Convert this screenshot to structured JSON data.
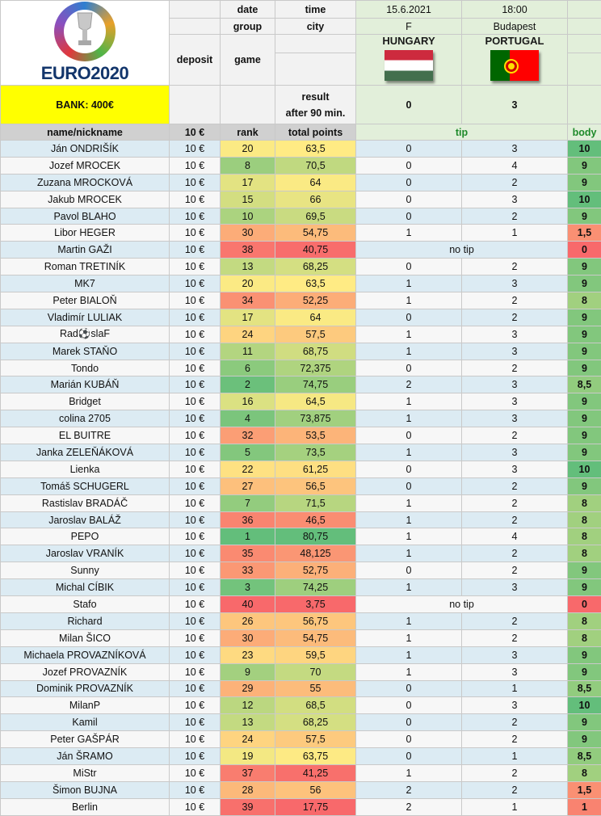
{
  "header": {
    "logo_text": "EURO2020",
    "bank_label": "BANK: 400€",
    "date_label": "date",
    "time_label": "time",
    "group_label": "group",
    "city_label": "city",
    "deposit_label": "deposit",
    "game_label": "game",
    "result_label_1": "result",
    "result_label_2": "after 90 min.",
    "date_value": "15.6.2021",
    "time_value": "18:00",
    "group_value": "F",
    "city_value": "Budapest",
    "home_team": "HUNGARY",
    "away_team": "PORTUGAL",
    "home_score": "0",
    "away_score": "3"
  },
  "columns": {
    "name": "name/nickname",
    "deposit": "10 €",
    "rank": "rank",
    "total": "total points",
    "tip": "tip",
    "points": "body"
  },
  "colors": {
    "no_tip_text": "no tip",
    "green": "#63be7b",
    "yellow": "#ffeb84",
    "red": "#f8696b"
  },
  "rows": [
    {
      "name": "Ján ONDRIŠÍK",
      "deposit": "10 €",
      "rank": "20",
      "total": "63,5",
      "tip1": "0",
      "tip2": "3",
      "points": "10"
    },
    {
      "name": "Jozef MROCEK",
      "deposit": "10 €",
      "rank": "8",
      "total": "70,5",
      "tip1": "0",
      "tip2": "4",
      "points": "9"
    },
    {
      "name": "Zuzana MROCKOVÁ",
      "deposit": "10 €",
      "rank": "17",
      "total": "64",
      "tip1": "0",
      "tip2": "2",
      "points": "9"
    },
    {
      "name": "Jakub MROCEK",
      "deposit": "10 €",
      "rank": "15",
      "total": "66",
      "tip1": "0",
      "tip2": "3",
      "points": "10"
    },
    {
      "name": "Pavol BLAHO",
      "deposit": "10 €",
      "rank": "10",
      "total": "69,5",
      "tip1": "0",
      "tip2": "2",
      "points": "9"
    },
    {
      "name": "Libor HEGER",
      "deposit": "10 €",
      "rank": "30",
      "total": "54,75",
      "tip1": "1",
      "tip2": "1",
      "points": "1,5"
    },
    {
      "name": "Martin GAŽI",
      "deposit": "10 €",
      "rank": "38",
      "total": "40,75",
      "tip1": "",
      "tip2": "",
      "notip": "no tip",
      "points": "0"
    },
    {
      "name": "Roman TRETINÍK",
      "deposit": "10 €",
      "rank": "13",
      "total": "68,25",
      "tip1": "0",
      "tip2": "2",
      "points": "9"
    },
    {
      "name": "MK7",
      "deposit": "10 €",
      "rank": "20",
      "total": "63,5",
      "tip1": "1",
      "tip2": "3",
      "points": "9"
    },
    {
      "name": "Peter BIALOŇ",
      "deposit": "10 €",
      "rank": "34",
      "total": "52,25",
      "tip1": "1",
      "tip2": "2",
      "points": "8"
    },
    {
      "name": "Vladimír LULIAK",
      "deposit": "10 €",
      "rank": "17",
      "total": "64",
      "tip1": "0",
      "tip2": "2",
      "points": "9"
    },
    {
      "name": "Rad⚽slaF",
      "deposit": "10 €",
      "rank": "24",
      "total": "57,5",
      "tip1": "1",
      "tip2": "3",
      "points": "9"
    },
    {
      "name": "Marek STAŇO",
      "deposit": "10 €",
      "rank": "11",
      "total": "68,75",
      "tip1": "1",
      "tip2": "3",
      "points": "9"
    },
    {
      "name": "Tondo",
      "deposit": "10 €",
      "rank": "6",
      "total": "72,375",
      "tip1": "0",
      "tip2": "2",
      "points": "9"
    },
    {
      "name": "Marián KUBÁŇ",
      "deposit": "10 €",
      "rank": "2",
      "total": "74,75",
      "tip1": "2",
      "tip2": "3",
      "points": "8,5"
    },
    {
      "name": "Bridget",
      "deposit": "10 €",
      "rank": "16",
      "total": "64,5",
      "tip1": "1",
      "tip2": "3",
      "points": "9"
    },
    {
      "name": "colina 2705",
      "deposit": "10 €",
      "rank": "4",
      "total": "73,875",
      "tip1": "1",
      "tip2": "3",
      "points": "9"
    },
    {
      "name": "EL BUITRE",
      "deposit": "10 €",
      "rank": "32",
      "total": "53,5",
      "tip1": "0",
      "tip2": "2",
      "points": "9"
    },
    {
      "name": "Janka ZELEŇÁKOVÁ",
      "deposit": "10 €",
      "rank": "5",
      "total": "73,5",
      "tip1": "1",
      "tip2": "3",
      "points": "9"
    },
    {
      "name": "Lienka",
      "deposit": "10 €",
      "rank": "22",
      "total": "61,25",
      "tip1": "0",
      "tip2": "3",
      "points": "10"
    },
    {
      "name": "Tomáš SCHUGERL",
      "deposit": "10 €",
      "rank": "27",
      "total": "56,5",
      "tip1": "0",
      "tip2": "2",
      "points": "9"
    },
    {
      "name": "Rastislav BRADÁČ",
      "deposit": "10 €",
      "rank": "7",
      "total": "71,5",
      "tip1": "1",
      "tip2": "2",
      "points": "8"
    },
    {
      "name": "Jaroslav BALÁŽ",
      "deposit": "10 €",
      "rank": "36",
      "total": "46,5",
      "tip1": "1",
      "tip2": "2",
      "points": "8"
    },
    {
      "name": "PEPO",
      "deposit": "10 €",
      "rank": "1",
      "total": "80,75",
      "tip1": "1",
      "tip2": "4",
      "points": "8"
    },
    {
      "name": "Jaroslav VRANÍK",
      "deposit": "10 €",
      "rank": "35",
      "total": "48,125",
      "tip1": "1",
      "tip2": "2",
      "points": "8"
    },
    {
      "name": "Sunny",
      "deposit": "10 €",
      "rank": "33",
      "total": "52,75",
      "tip1": "0",
      "tip2": "2",
      "points": "9"
    },
    {
      "name": "Michal CÍBIK",
      "deposit": "10 €",
      "rank": "3",
      "total": "74,25",
      "tip1": "1",
      "tip2": "3",
      "points": "9"
    },
    {
      "name": "Stafo",
      "deposit": "10 €",
      "rank": "40",
      "total": "3,75",
      "tip1": "",
      "tip2": "",
      "notip": "no tip",
      "points": "0"
    },
    {
      "name": "Richard",
      "deposit": "10 €",
      "rank": "26",
      "total": "56,75",
      "tip1": "1",
      "tip2": "2",
      "points": "8"
    },
    {
      "name": "Milan ŠICO",
      "deposit": "10 €",
      "rank": "30",
      "total": "54,75",
      "tip1": "1",
      "tip2": "2",
      "points": "8"
    },
    {
      "name": "Michaela PROVAZNÍKOVÁ",
      "deposit": "10 €",
      "rank": "23",
      "total": "59,5",
      "tip1": "1",
      "tip2": "3",
      "points": "9"
    },
    {
      "name": "Jozef PROVAZNÍK",
      "deposit": "10 €",
      "rank": "9",
      "total": "70",
      "tip1": "1",
      "tip2": "3",
      "points": "9"
    },
    {
      "name": "Dominik PROVAZNÍK",
      "deposit": "10 €",
      "rank": "29",
      "total": "55",
      "tip1": "0",
      "tip2": "1",
      "points": "8,5"
    },
    {
      "name": "MilanP",
      "deposit": "10 €",
      "rank": "12",
      "total": "68,5",
      "tip1": "0",
      "tip2": "3",
      "points": "10"
    },
    {
      "name": "Kamil",
      "deposit": "10 €",
      "rank": "13",
      "total": "68,25",
      "tip1": "0",
      "tip2": "2",
      "points": "9"
    },
    {
      "name": "Peter GAŠPÁR",
      "deposit": "10 €",
      "rank": "24",
      "total": "57,5",
      "tip1": "0",
      "tip2": "2",
      "points": "9"
    },
    {
      "name": "Ján ŠRAMO",
      "deposit": "10 €",
      "rank": "19",
      "total": "63,75",
      "tip1": "0",
      "tip2": "1",
      "points": "8,5"
    },
    {
      "name": "MiStr",
      "deposit": "10 €",
      "rank": "37",
      "total": "41,25",
      "tip1": "1",
      "tip2": "2",
      "points": "8"
    },
    {
      "name": "Šimon BUJNA",
      "deposit": "10 €",
      "rank": "28",
      "total": "56",
      "tip1": "2",
      "tip2": "2",
      "points": "1,5"
    },
    {
      "name": "Berlin",
      "deposit": "10 €",
      "rank": "39",
      "total": "17,75",
      "tip1": "2",
      "tip2": "1",
      "points": "1"
    }
  ]
}
